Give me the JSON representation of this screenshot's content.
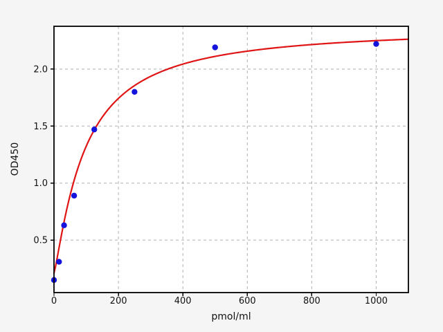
{
  "chart_data": {
    "type": "scatter",
    "title": "",
    "xlabel": "pmol/ml",
    "ylabel": "OD450",
    "xlim": [
      0,
      1100
    ],
    "ylim": [
      0.04,
      2.375
    ],
    "xticks": [
      0,
      200,
      400,
      600,
      800,
      1000
    ],
    "xtick_labels": [
      "0",
      "200",
      "400",
      "600",
      "800",
      "1000"
    ],
    "yticks": [
      0.5,
      1.0,
      1.5,
      2.0
    ],
    "ytick_labels": [
      "0.5",
      "1.0",
      "1.5",
      "2.0"
    ],
    "grid": {
      "visible": true,
      "style": "dashed"
    },
    "legend_position": "none",
    "series": [
      {
        "name": "standard-points",
        "type": "scatter",
        "marker": "circle",
        "points": [
          {
            "x": 0,
            "y": 0.15
          },
          {
            "x": 15.6,
            "y": 0.31
          },
          {
            "x": 31.25,
            "y": 0.63
          },
          {
            "x": 62.5,
            "y": 0.89
          },
          {
            "x": 125,
            "y": 1.47
          },
          {
            "x": 250,
            "y": 1.8
          },
          {
            "x": 500,
            "y": 2.19
          },
          {
            "x": 1000,
            "y": 2.22
          }
        ]
      },
      {
        "name": "fit-curve",
        "type": "line",
        "fit": {
          "model": "4PL",
          "a": 0.21,
          "b": 1.2,
          "c": 95,
          "d": 2.37
        },
        "x_range": [
          0,
          1100
        ]
      }
    ],
    "colors": {
      "figure_bg": "#f5f5f5",
      "plot_bg": "#ffffff",
      "spine": "#000000",
      "grid": "#b0b0b0",
      "tick_text": "#111111",
      "point": "#1414dd",
      "curve": "#e01414"
    }
  }
}
